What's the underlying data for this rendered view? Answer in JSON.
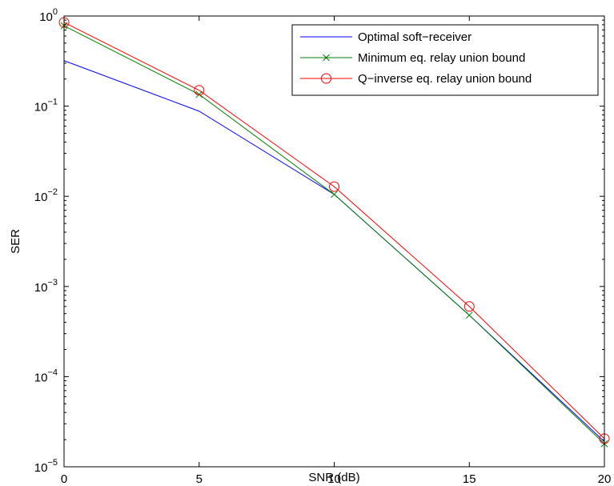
{
  "chart_data": {
    "type": "line",
    "title": "",
    "xlabel": "SNR (dB)",
    "ylabel": "SER",
    "xscale": "linear",
    "yscale": "log",
    "xlim": [
      0,
      20
    ],
    "ylim": [
      1e-05,
      1
    ],
    "grid": false,
    "legend_position": "top-right",
    "x_ticks": [
      0,
      5,
      10,
      15,
      20
    ],
    "x_tick_labels": [
      "0",
      "5",
      "10",
      "15",
      "20"
    ],
    "y_ticks": [
      1e-05,
      0.0001,
      0.001,
      0.01,
      0.1,
      1
    ],
    "y_tick_labels": [
      {
        "base": "10",
        "exp": "−5"
      },
      {
        "base": "10",
        "exp": "−4"
      },
      {
        "base": "10",
        "exp": "−3"
      },
      {
        "base": "10",
        "exp": "−2"
      },
      {
        "base": "10",
        "exp": "−1"
      },
      {
        "base": "10",
        "exp": "0"
      }
    ],
    "x": [
      0,
      5,
      10,
      15,
      20
    ],
    "series": [
      {
        "name": "Optimal soft−receiver",
        "color": "#0000ff",
        "marker": "none",
        "values": [
          0.32,
          0.088,
          0.0105,
          0.00048,
          1.9e-05
        ]
      },
      {
        "name": "Minimum eq. relay union bound",
        "color": "#008000",
        "marker": "x",
        "values": [
          0.78,
          0.135,
          0.0105,
          0.00048,
          1.8e-05
        ]
      },
      {
        "name": "Q−inverse eq. relay union bound",
        "color": "#ff0000",
        "marker": "o",
        "values": [
          0.85,
          0.15,
          0.0128,
          0.0006,
          2.05e-05
        ]
      }
    ]
  }
}
